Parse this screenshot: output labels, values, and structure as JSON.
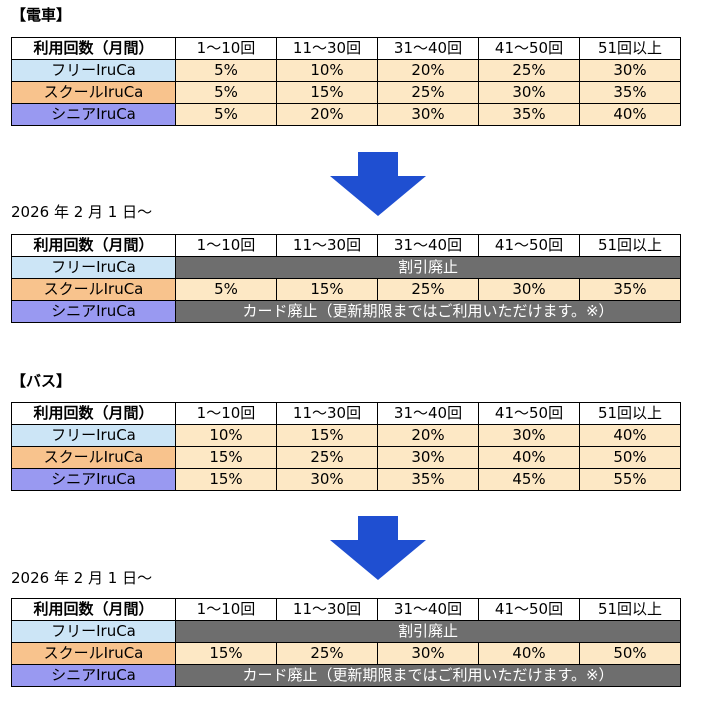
{
  "sections": {
    "train": {
      "heading": "【電車】",
      "current": {
        "headers": [
          "利用回数（月間）",
          "1～10回",
          "11～30回",
          "31～40回",
          "41～50回",
          "51回以上"
        ],
        "rows": [
          {
            "label": "フリーIruCa",
            "values": [
              "5%",
              "10%",
              "20%",
              "25%",
              "30%"
            ]
          },
          {
            "label": "スクールIruCa",
            "values": [
              "5%",
              "15%",
              "25%",
              "30%",
              "35%"
            ]
          },
          {
            "label": "シニアIruCa",
            "values": [
              "5%",
              "20%",
              "30%",
              "35%",
              "40%"
            ]
          }
        ]
      },
      "effective_date": "2026 年 2 月 1 日～",
      "new": {
        "headers": [
          "利用回数（月間）",
          "1～10回",
          "11～30回",
          "31～40回",
          "41～50回",
          "51回以上"
        ],
        "free": {
          "label": "フリーIruCa",
          "note": "割引廃止"
        },
        "school": {
          "label": "スクールIruCa",
          "values": [
            "5%",
            "15%",
            "25%",
            "30%",
            "35%"
          ]
        },
        "senior": {
          "label": "シニアIruCa",
          "note": "カード廃止（更新期限まではご利用いただけます。※）"
        }
      }
    },
    "bus": {
      "heading": "【バス】",
      "current": {
        "headers": [
          "利用回数（月間）",
          "1～10回",
          "11～30回",
          "31～40回",
          "41～50回",
          "51回以上"
        ],
        "rows": [
          {
            "label": "フリーIruCa",
            "values": [
              "10%",
              "15%",
              "20%",
              "30%",
              "40%"
            ]
          },
          {
            "label": "スクールIruCa",
            "values": [
              "15%",
              "25%",
              "30%",
              "40%",
              "50%"
            ]
          },
          {
            "label": "シニアIruCa",
            "values": [
              "15%",
              "30%",
              "35%",
              "45%",
              "55%"
            ]
          }
        ]
      },
      "effective_date": "2026 年 2 月 1 日～",
      "new": {
        "headers": [
          "利用回数（月間）",
          "1～10回",
          "11～30回",
          "31～40回",
          "41～50回",
          "51回以上"
        ],
        "free": {
          "label": "フリーIruCa",
          "note": "割引廃止"
        },
        "school": {
          "label": "スクールIruCa",
          "values": [
            "15%",
            "25%",
            "30%",
            "40%",
            "50%"
          ]
        },
        "senior": {
          "label": "シニアIruCa",
          "note": "カード廃止（更新期限まではご利用いただけます。※）"
        }
      }
    }
  },
  "colors": {
    "free": "#cce5f6",
    "school": "#f8c38d",
    "senior": "#9999f1",
    "value": "#fde8c5",
    "abolished": "#6e6e6e",
    "arrow": "#1f4fd1"
  },
  "icons": {
    "transition": "down-arrow-icon"
  }
}
